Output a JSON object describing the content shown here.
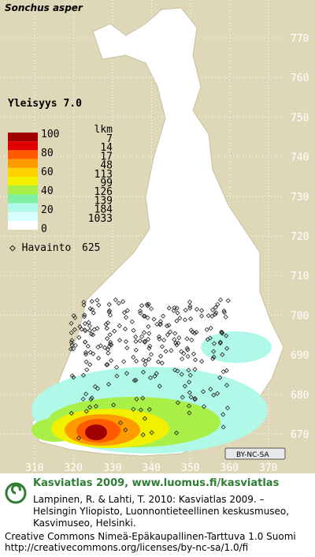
{
  "map": {
    "title": "Sonchus asper",
    "frequency": "Yleisyys 7.0",
    "legend": {
      "levels": [
        "100",
        "80",
        "60",
        "40",
        "20",
        "0"
      ],
      "count_header": "lkm",
      "counts": [
        "7",
        "14",
        "17",
        "48",
        "113",
        "99",
        "126",
        "139",
        "184",
        "1033"
      ],
      "colors": [
        "#a00000",
        "#e00000",
        "#ff5a00",
        "#ff9a00",
        "#ffd200",
        "#f0f000",
        "#a8f048",
        "#80f0a0",
        "#b0f8e8",
        "#d8ffff",
        "#ffffff"
      ]
    },
    "observations": "Havainto",
    "observation_count": "625",
    "y_labels": [
      "770",
      "760",
      "750",
      "740",
      "730",
      "720",
      "710",
      "700",
      "690",
      "680",
      "670"
    ],
    "x_labels": [
      "310",
      "320",
      "330",
      "340",
      "350",
      "360",
      "370"
    ],
    "badge": "BY-NC-SA"
  },
  "footer": {
    "heading": "Kasviatlas 2009, www.luomus.fi/kasviatlas",
    "citation": [
      "Lampinen, R. & Lahti, T. 2010: Kasviatlas 2009. –",
      "Helsingin Yliopisto, Luonnontieteellinen keskusmuseo,",
      "Kasvimuseo, Helsinki."
    ],
    "license": [
      "Creative Commons Nimeä-Epäkaupallinen-Tarttuva 1.0 Suomi",
      "http://creativecommons.org/licenses/by-nc-sa/1.0/fi"
    ]
  }
}
